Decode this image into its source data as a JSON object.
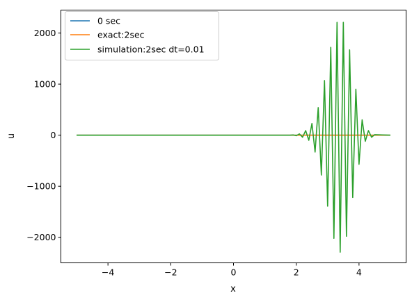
{
  "chart_data": {
    "type": "line",
    "xlabel": "x",
    "ylabel": "u",
    "xlim": [
      -5.5,
      5.5
    ],
    "ylim": [
      -2500,
      2450
    ],
    "xticks": [
      -4,
      -2,
      0,
      2,
      4
    ],
    "xtick_labels": [
      "−4",
      "−2",
      "0",
      "2",
      "4"
    ],
    "yticks": [
      -2000,
      -1000,
      0,
      1000,
      2000
    ],
    "ytick_labels": [
      "−2000",
      "−1000",
      "0",
      "1000",
      "2000"
    ],
    "grid": false,
    "legend_placement": "upper-left",
    "series": [
      {
        "name": "0 sec",
        "color": "#1f77b4",
        "x": [
          -5,
          5
        ],
        "y": [
          0,
          0
        ]
      },
      {
        "name": "exact:2sec",
        "color": "#ff7f0e",
        "x": [
          -5,
          5
        ],
        "y": [
          0,
          0
        ]
      },
      {
        "name": "simulation:2sec dt=0.01",
        "color": "#2ca02c",
        "x": [
          -5,
          1.8,
          1.9,
          2.0,
          2.1,
          2.2,
          2.3,
          2.4,
          2.5,
          2.6,
          2.7,
          2.8,
          2.9,
          3.0,
          3.1,
          3.2,
          3.3,
          3.4,
          3.5,
          3.6,
          3.7,
          3.8,
          3.9,
          4.0,
          4.1,
          4.2,
          4.3,
          4.4,
          4.5,
          5
        ],
        "y": [
          0,
          0,
          5,
          -10,
          25,
          -40,
          90,
          -100,
          230,
          -330,
          540,
          -780,
          1070,
          -1390,
          1720,
          -2020,
          2210,
          -2290,
          2210,
          -1980,
          1670,
          -1220,
          900,
          -570,
          300,
          -120,
          90,
          -40,
          10,
          0
        ]
      }
    ]
  }
}
